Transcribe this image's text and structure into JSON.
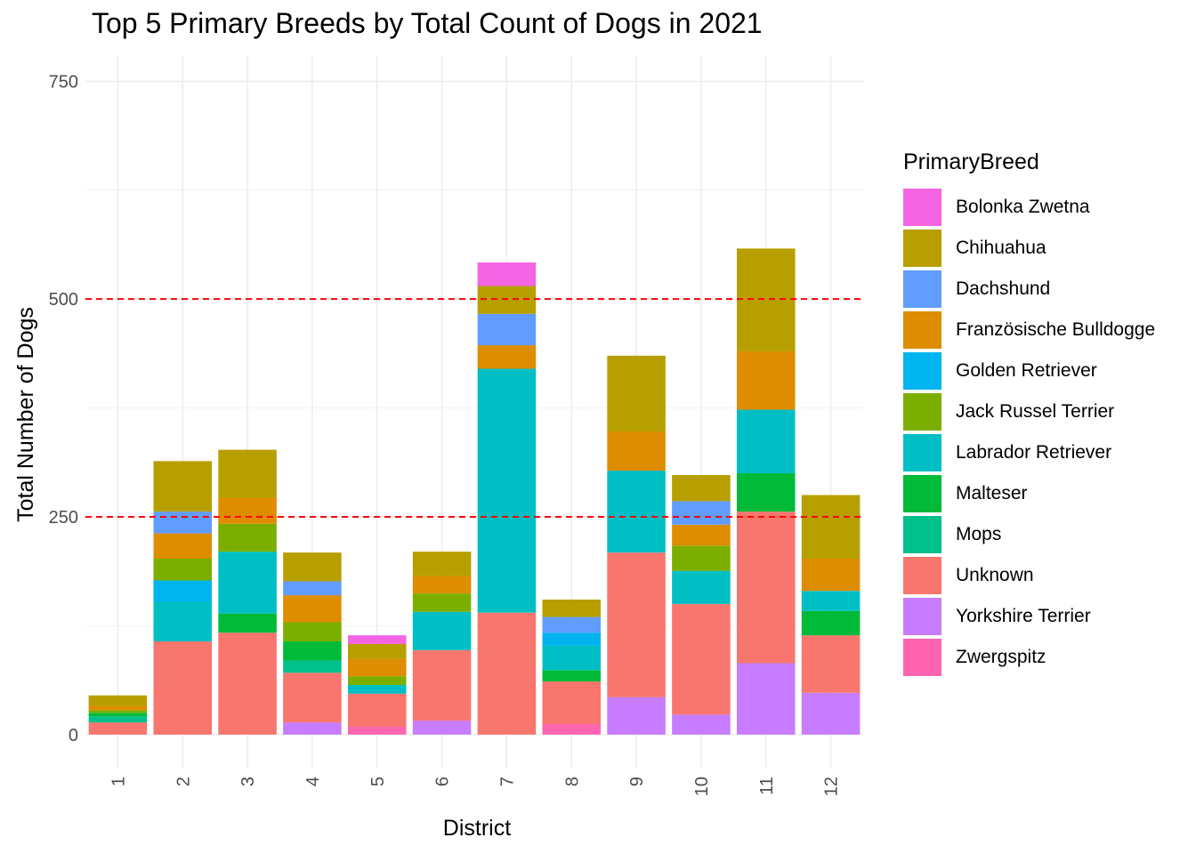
{
  "chart_data": {
    "type": "bar",
    "stacked": true,
    "title": "Top 5 Primary Breeds by Total Count of Dogs in 2021",
    "xlabel": "District",
    "ylabel": "Total Number of Dogs",
    "ylim": [
      -38,
      780
    ],
    "yticks": [
      0,
      250,
      500,
      750
    ],
    "grid": true,
    "reference_lines": [
      250,
      500
    ],
    "reference_line_color": "#FF0000",
    "legend_title": "PrimaryBreed",
    "legend_position": "right",
    "categories": [
      "1",
      "2",
      "3",
      "4",
      "5",
      "6",
      "7",
      "8",
      "9",
      "10",
      "11",
      "12"
    ],
    "series": [
      {
        "name": "Bolonka Zwetna",
        "color": "#F564E3",
        "values": [
          0,
          0,
          0,
          0,
          10,
          0,
          27,
          0,
          0,
          0,
          0,
          0
        ]
      },
      {
        "name": "Chihuahua",
        "color": "#B79F00",
        "values": [
          12,
          58,
          55,
          33,
          17,
          28,
          32,
          20,
          87,
          30,
          118,
          73
        ]
      },
      {
        "name": "Dachshund",
        "color": "#619CFF",
        "values": [
          0,
          25,
          0,
          16,
          0,
          0,
          36,
          18,
          0,
          27,
          0,
          0
        ]
      },
      {
        "name": "Französische Bulldogge",
        "color": "#DE8C00",
        "values": [
          5,
          29,
          30,
          31,
          20,
          20,
          27,
          0,
          45,
          24,
          67,
          37
        ]
      },
      {
        "name": "Golden Retriever",
        "color": "#00B4EF",
        "values": [
          0,
          24,
          0,
          0,
          0,
          0,
          0,
          15,
          0,
          0,
          0,
          0
        ]
      },
      {
        "name": "Jack Russel Terrier",
        "color": "#7CAE00",
        "values": [
          3,
          25,
          32,
          22,
          10,
          21,
          0,
          0,
          0,
          29,
          0,
          0
        ]
      },
      {
        "name": "Labrador Retriever",
        "color": "#00BFC4",
        "values": [
          0,
          46,
          71,
          0,
          10,
          44,
          280,
          28,
          94,
          38,
          73,
          23
        ]
      },
      {
        "name": "Malteser",
        "color": "#00BA38",
        "values": [
          4,
          0,
          22,
          22,
          0,
          0,
          0,
          13,
          0,
          0,
          44,
          28
        ]
      },
      {
        "name": "Mops",
        "color": "#00C08B",
        "values": [
          7,
          0,
          0,
          14,
          0,
          0,
          0,
          0,
          0,
          0,
          0,
          0
        ]
      },
      {
        "name": "Unknown",
        "color": "#F8766D",
        "values": [
          14,
          107,
          117,
          57,
          38,
          81,
          140,
          49,
          166,
          127,
          174,
          66
        ]
      },
      {
        "name": "Yorkshire Terrier",
        "color": "#C77CFF",
        "values": [
          0,
          0,
          0,
          14,
          0,
          16,
          0,
          0,
          43,
          23,
          82,
          48
        ]
      },
      {
        "name": "Zwergspitz",
        "color": "#FF64B0",
        "values": [
          0,
          0,
          0,
          0,
          9,
          0,
          0,
          12,
          0,
          0,
          0,
          0
        ]
      }
    ],
    "stack_order_bottom_to_top": [
      "Yorkshire Terrier",
      "Zwergspitz",
      "Unknown",
      "Mops",
      "Malteser",
      "Labrador Retriever",
      "Golden Retriever",
      "Jack Russel Terrier",
      "Französische Bulldogge",
      "Dachshund",
      "Chihuahua",
      "Bolonka Zwetna"
    ]
  }
}
